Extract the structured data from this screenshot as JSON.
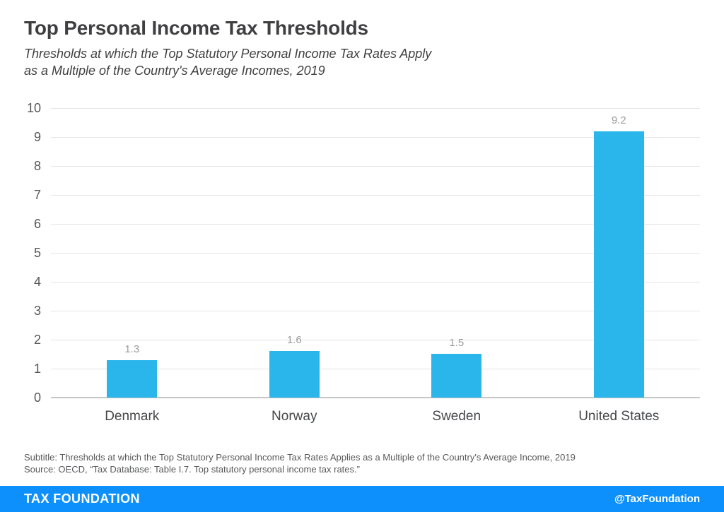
{
  "header": {
    "title": "Top Personal Income Tax Thresholds",
    "subtitle_line1": "Thresholds at which the Top Statutory Personal Income Tax Rates Apply",
    "subtitle_line2": "as a Multiple of the Country's Average Incomes, 2019"
  },
  "chart_data": {
    "type": "bar",
    "categories": [
      "Denmark",
      "Norway",
      "Sweden",
      "United States"
    ],
    "values": [
      1.3,
      1.6,
      1.5,
      9.2
    ],
    "value_labels": [
      "1.3",
      "1.6",
      "1.5",
      "9.2"
    ],
    "title": "Top Personal Income Tax Thresholds",
    "xlabel": "",
    "ylabel": "",
    "ylim": [
      0,
      10
    ],
    "yticks": [
      0,
      1,
      2,
      3,
      4,
      5,
      6,
      7,
      8,
      9,
      10
    ],
    "grid": true,
    "legend": "none",
    "bar_color": "#2AB6EA"
  },
  "footnotes": {
    "subtitle_note": "Subtitle: Thresholds at which the Top Statutory Personal Income Tax Rates Applies as a Multiple of the Country's Average Income, 2019",
    "source_note": "Source: OECD, “Tax Database: Table I.7. Top statutory personal income tax rates.”"
  },
  "footer": {
    "brand": "TAX FOUNDATION",
    "handle": "@TaxFoundation",
    "bar_color": "#0E90FC"
  },
  "colors": {
    "bar": "#2AB6EA",
    "grid_line": "#E4E4E4",
    "zero_axis_line": "#C6C6C6",
    "tick_label": "#56575A",
    "value_label": "#9C9C9C",
    "category_label": "#45474A",
    "title_text": "#3F3F41",
    "footnote_text": "#58595B",
    "footer_blue": "#0E90FC"
  }
}
